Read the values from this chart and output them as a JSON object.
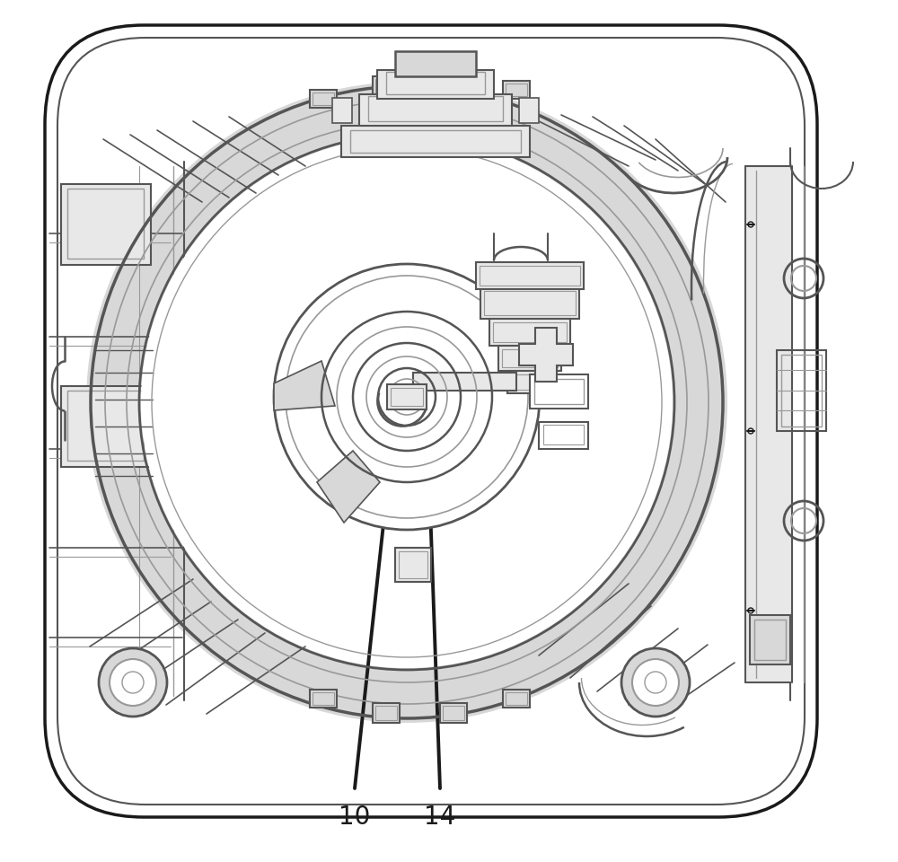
{
  "bg_color": "#ffffff",
  "lc": "#1a1a1a",
  "gc": "#555555",
  "lgc": "#999999",
  "vlgc": "#cccccc",
  "fill_gray": "#d8d8d8",
  "fill_light": "#e8e8e8",
  "fill_mid": "#c0c0c0",
  "label_10": "10",
  "label_14": "14",
  "label_fontsize": 20,
  "fig_width": 10.0,
  "fig_height": 9.6,
  "dpi": 100
}
